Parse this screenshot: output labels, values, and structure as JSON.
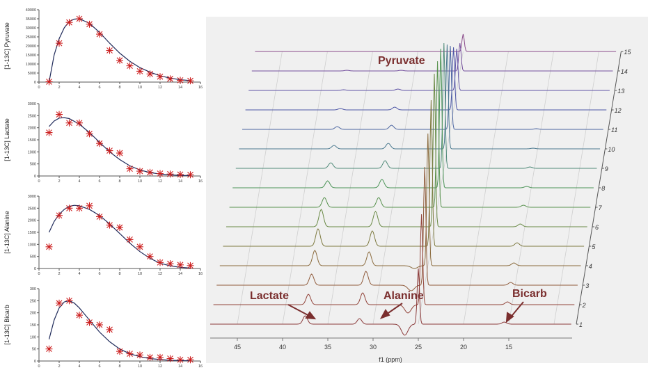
{
  "chart_data": [
    {
      "type": "scatter",
      "title": "",
      "ylabel": "[1-13C] Pyruvate",
      "xlabel": "",
      "xlim": [
        0,
        16
      ],
      "ylim": [
        0,
        40000
      ],
      "xticks": [
        "0",
        "2",
        "4",
        "6",
        "8",
        "10",
        "12",
        "14",
        "16"
      ],
      "yticks": [
        "0",
        "5000",
        "10000",
        "15000",
        "20000",
        "25000",
        "30000",
        "35000",
        "40000"
      ],
      "points": {
        "x": [
          1,
          2,
          3,
          4,
          5,
          6,
          7,
          8,
          9,
          10,
          11,
          12,
          13,
          14,
          15
        ],
        "y": [
          200,
          21500,
          33000,
          35000,
          32000,
          26500,
          17500,
          12000,
          9000,
          6000,
          4500,
          3000,
          1800,
          1000,
          700
        ]
      },
      "fit": {
        "x": [
          1,
          1.5,
          2,
          2.5,
          3,
          3.5,
          4,
          5,
          6,
          7,
          8,
          9,
          10,
          11,
          12,
          13,
          14,
          15
        ],
        "y": [
          0,
          15000,
          24000,
          30000,
          33500,
          34800,
          35000,
          32500,
          27500,
          21500,
          16000,
          11500,
          8000,
          5500,
          3500,
          2200,
          1300,
          800
        ]
      }
    },
    {
      "type": "scatter",
      "title": "",
      "ylabel": "[1-13C] Lactate",
      "xlabel": "",
      "xlim": [
        0,
        16
      ],
      "ylim": [
        0,
        3000
      ],
      "xticks": [
        "0",
        "2",
        "4",
        "6",
        "8",
        "10",
        "12",
        "14",
        "16"
      ],
      "yticks": [
        "0",
        "500",
        "1000",
        "1500",
        "2000",
        "2500",
        "3000"
      ],
      "points": {
        "x": [
          1,
          2,
          3,
          4,
          5,
          6,
          7,
          8,
          9,
          10,
          11,
          12,
          13,
          14,
          15
        ],
        "y": [
          1800,
          2550,
          2200,
          2200,
          1750,
          1350,
          1050,
          950,
          300,
          200,
          150,
          100,
          80,
          60,
          50
        ]
      },
      "fit": {
        "x": [
          1,
          1.5,
          2,
          2.5,
          3,
          4,
          5,
          6,
          7,
          8,
          9,
          10,
          11,
          12,
          13,
          14,
          15
        ],
        "y": [
          2050,
          2280,
          2400,
          2420,
          2380,
          2150,
          1800,
          1400,
          1000,
          680,
          420,
          250,
          140,
          80,
          45,
          25,
          15
        ]
      }
    },
    {
      "type": "scatter",
      "title": "",
      "ylabel": "[1-13C] Alanine",
      "xlabel": "",
      "xlim": [
        0,
        16
      ],
      "ylim": [
        0,
        3000
      ],
      "xticks": [
        "0",
        "2",
        "4",
        "6",
        "8",
        "10",
        "12",
        "14",
        "16"
      ],
      "yticks": [
        "0",
        "500",
        "1000",
        "1500",
        "2000",
        "2500",
        "3000"
      ],
      "points": {
        "x": [
          1,
          2,
          3,
          4,
          5,
          6,
          7,
          8,
          9,
          10,
          11,
          12,
          13,
          14,
          15
        ],
        "y": [
          900,
          2200,
          2500,
          2500,
          2600,
          2150,
          1800,
          1700,
          1200,
          900,
          500,
          250,
          200,
          150,
          120
        ]
      },
      "fit": {
        "x": [
          1,
          1.5,
          2,
          2.5,
          3,
          3.5,
          4,
          5,
          6,
          7,
          8,
          9,
          10,
          11,
          12,
          13,
          14,
          15
        ],
        "y": [
          1500,
          1950,
          2250,
          2450,
          2580,
          2620,
          2600,
          2450,
          2200,
          1850,
          1450,
          1050,
          700,
          420,
          220,
          110,
          50,
          20
        ]
      }
    },
    {
      "type": "scatter",
      "title": "",
      "ylabel": "[1-13C] Bicarb",
      "xlabel": "",
      "xlim": [
        0,
        16
      ],
      "ylim": [
        0,
        300
      ],
      "xticks": [
        "0",
        "2",
        "4",
        "6",
        "8",
        "10",
        "12",
        "14",
        "16"
      ],
      "yticks": [
        "0",
        "50",
        "100",
        "150",
        "200",
        "250",
        "300"
      ],
      "points": {
        "x": [
          1,
          2,
          3,
          4,
          5,
          6,
          7,
          8,
          9,
          10,
          11,
          12,
          13,
          14,
          15
        ],
        "y": [
          50,
          240,
          250,
          190,
          160,
          150,
          130,
          40,
          30,
          25,
          15,
          15,
          10,
          5,
          5
        ]
      },
      "fit": {
        "x": [
          1,
          1.5,
          2,
          2.5,
          3,
          3.5,
          4,
          5,
          6,
          7,
          8,
          9,
          10,
          11,
          12,
          13,
          14,
          15
        ],
        "y": [
          90,
          170,
          220,
          245,
          250,
          240,
          220,
          170,
          120,
          80,
          50,
          30,
          18,
          10,
          6,
          3,
          2,
          1
        ]
      }
    },
    {
      "type": "line",
      "title": "",
      "xlabel": "f1 (ppm)",
      "xlim": [
        48,
        8
      ],
      "xticks": [
        "45",
        "40",
        "35",
        "30",
        "25",
        "20",
        "15"
      ],
      "spectra_count": 15,
      "spectrum_labels": [
        "1",
        "2",
        "3",
        "4",
        "5",
        "6",
        "7",
        "8",
        "9",
        "10",
        "11",
        "12",
        "13",
        "14",
        "15"
      ],
      "series_colors": [
        "#8b3a3a",
        "#92443a",
        "#8f5a3a",
        "#8a6a3c",
        "#7e7a40",
        "#6a8a46",
        "#58924e",
        "#4c9458",
        "#4f8a78",
        "#4c7a90",
        "#4a64a0",
        "#4d56a6",
        "#6054a6",
        "#74509e",
        "#8a4a8a"
      ],
      "peaks": [
        {
          "name": "Lactate",
          "ppm": 37.5,
          "heights": [
            12,
            15,
            16,
            22,
            25,
            25,
            14,
            10,
            8,
            5,
            4,
            2,
            1,
            1,
            0
          ]
        },
        {
          "name": "Alanine",
          "ppm": 31.5,
          "heights": [
            8,
            17,
            20,
            20,
            22,
            22,
            14,
            12,
            11,
            8,
            6,
            4,
            2,
            1,
            0
          ]
        },
        {
          "name": "Pyruvate",
          "ppm": 25.0,
          "heights": [
            80,
            130,
            170,
            190,
            210,
            220,
            210,
            200,
            180,
            150,
            120,
            90,
            60,
            40,
            25
          ]
        },
        {
          "name": "Bicarb",
          "ppm": 15.5,
          "heights": [
            3,
            4,
            4,
            4,
            5,
            4,
            3,
            2,
            2,
            1,
            1,
            0,
            0,
            0,
            0
          ]
        }
      ],
      "annotations": [
        "Pyruvate",
        "Lactate",
        "Alanine",
        "Bicarb"
      ]
    }
  ]
}
